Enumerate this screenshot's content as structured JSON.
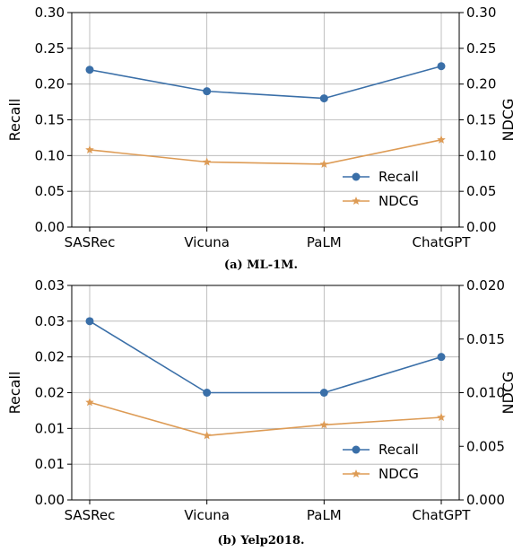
{
  "chart_data": [
    {
      "type": "line",
      "caption": "(a) ML-1M.",
      "categories": [
        "SASRec",
        "Vicuna",
        "PaLM",
        "ChatGPT"
      ],
      "ylabel": "Recall",
      "y2label": "NDCG",
      "ylim": [
        0,
        0.3
      ],
      "y2lim": [
        0,
        0.3
      ],
      "yticks": [
        "0.00",
        "0.05",
        "0.10",
        "0.15",
        "0.20",
        "0.25",
        "0.30"
      ],
      "y2ticks": [
        "0.00",
        "0.05",
        "0.10",
        "0.15",
        "0.20",
        "0.25",
        "0.30"
      ],
      "grid": true,
      "legend_position": "lower-right",
      "series": [
        {
          "name": "Recall",
          "axis": "left",
          "marker": "circle",
          "color": "#3a6fa8",
          "values": [
            0.22,
            0.19,
            0.18,
            0.225
          ]
        },
        {
          "name": "NDCG",
          "axis": "right",
          "marker": "star",
          "color": "#dd9b55",
          "values": [
            0.108,
            0.091,
            0.088,
            0.122
          ]
        }
      ]
    },
    {
      "type": "line",
      "caption": "(b) Yelp2018.",
      "categories": [
        "SASRec",
        "Vicuna",
        "PaLM",
        "ChatGPT"
      ],
      "ylabel": "Recall",
      "y2label": "NDCG",
      "ylim": [
        0,
        0.03
      ],
      "y2lim": [
        0,
        0.02
      ],
      "yticks": [
        "0.00",
        "0.01",
        "0.01",
        "0.02",
        "0.02",
        "0.03",
        "0.03"
      ],
      "y2ticks": [
        "0.000",
        "0.005",
        "0.010",
        "0.015",
        "0.020"
      ],
      "grid": true,
      "legend_position": "lower-right",
      "series": [
        {
          "name": "Recall",
          "axis": "left",
          "marker": "circle",
          "color": "#3a6fa8",
          "values": [
            0.025,
            0.015,
            0.015,
            0.02
          ]
        },
        {
          "name": "NDCG",
          "axis": "right",
          "marker": "star",
          "color": "#dd9b55",
          "values": [
            0.0091,
            0.006,
            0.007,
            0.0077
          ]
        }
      ]
    }
  ]
}
